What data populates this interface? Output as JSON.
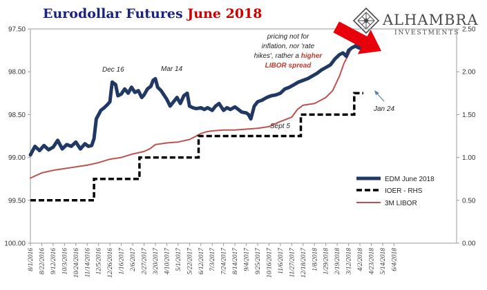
{
  "title": {
    "part1": "Eurodollar Futures ",
    "part2": "June 2018",
    "color1": "#1a237e",
    "color2": "#cc0000"
  },
  "brand": {
    "name": "Alhambra",
    "sub": "INVESTMENTS",
    "logo_icon": "diamond-lattice-icon"
  },
  "annotation": {
    "line1": "pricing not for",
    "line2": "inflation, nor 'rate",
    "line3_prefix": "hikes', rather a ",
    "line3_red": "higher",
    "line4_red": "LIBOR spread",
    "arrow_color": "#e8000b"
  },
  "chart_data": {
    "type": "line",
    "x_labels": [
      "8/1/2016",
      "8/22/2016",
      "9/12/2016",
      "10/3/2016",
      "10/24/2016",
      "11/14/2016",
      "12/5/2016",
      "12/26/2016",
      "1/16/2017",
      "2/6/2017",
      "2/27/2017",
      "3/20/2017",
      "4/10/2017",
      "5/1/2017",
      "5/22/2017",
      "6/12/2017",
      "7/3/2017",
      "7/24/2017",
      "8/14/2017",
      "9/4/2017",
      "9/25/2017",
      "10/16/2017",
      "11/6/2017",
      "11/27/2017",
      "12/18/2017",
      "1/8/2018",
      "1/29/2018",
      "2/19/2018",
      "3/12/2018",
      "4/2/2018",
      "4/23/2018",
      "5/14/2018",
      "6/4/2018"
    ],
    "left_axis": {
      "ticks": [
        "97.50",
        "98.00",
        "98.50",
        "99.00",
        "99.50",
        "100.00"
      ],
      "range": [
        97.5,
        100.0
      ],
      "inverted": true
    },
    "right_axis": {
      "ticks": [
        "2.50",
        "2.00",
        "1.50",
        "1.00",
        "0.50",
        "0.00"
      ],
      "range": [
        0.0,
        2.5
      ]
    },
    "series": [
      {
        "name": "EDM June 2018",
        "axis": "left",
        "color": "#1f3864",
        "style": "thick",
        "points": [
          [
            0,
            98.97
          ],
          [
            0.4,
            98.87
          ],
          [
            0.8,
            98.92
          ],
          [
            1.2,
            98.86
          ],
          [
            1.6,
            98.91
          ],
          [
            2,
            98.88
          ],
          [
            2.4,
            98.8
          ],
          [
            2.8,
            98.9
          ],
          [
            3.2,
            98.85
          ],
          [
            3.6,
            98.87
          ],
          [
            4,
            98.82
          ],
          [
            4.4,
            98.9
          ],
          [
            4.8,
            98.84
          ],
          [
            5.1,
            98.87
          ],
          [
            5.4,
            98.86
          ],
          [
            5.6,
            98.78
          ],
          [
            5.8,
            98.55
          ],
          [
            6,
            98.5
          ],
          [
            6.2,
            98.45
          ],
          [
            6.5,
            98.42
          ],
          [
            6.8,
            98.38
          ],
          [
            7,
            98.35
          ],
          [
            7.2,
            98.12
          ],
          [
            7.5,
            98.15
          ],
          [
            7.7,
            98.28
          ],
          [
            8,
            98.26
          ],
          [
            8.3,
            98.2
          ],
          [
            8.6,
            98.25
          ],
          [
            8.9,
            98.18
          ],
          [
            9.2,
            98.24
          ],
          [
            9.5,
            98.22
          ],
          [
            9.8,
            98.3
          ],
          [
            10,
            98.27
          ],
          [
            10.3,
            98.2
          ],
          [
            10.6,
            98.17
          ],
          [
            10.8,
            98.1
          ],
          [
            11,
            98.08
          ],
          [
            11.2,
            98.18
          ],
          [
            11.5,
            98.22
          ],
          [
            11.8,
            98.28
          ],
          [
            12,
            98.32
          ],
          [
            12.3,
            98.4
          ],
          [
            12.6,
            98.35
          ],
          [
            12.9,
            98.3
          ],
          [
            13.2,
            98.37
          ],
          [
            13.5,
            98.28
          ],
          [
            13.8,
            98.25
          ],
          [
            14,
            98.4
          ],
          [
            14.3,
            98.42
          ],
          [
            14.6,
            98.43
          ],
          [
            15,
            98.42
          ],
          [
            15.3,
            98.44
          ],
          [
            15.6,
            98.42
          ],
          [
            16,
            98.45
          ],
          [
            16.3,
            98.4
          ],
          [
            16.6,
            98.37
          ],
          [
            17,
            98.45
          ],
          [
            17.3,
            98.42
          ],
          [
            17.6,
            98.44
          ],
          [
            18,
            98.41
          ],
          [
            18.3,
            98.44
          ],
          [
            18.6,
            98.47
          ],
          [
            19,
            98.48
          ],
          [
            19.2,
            98.5
          ],
          [
            19.4,
            98.55
          ],
          [
            19.7,
            98.4
          ],
          [
            20,
            98.35
          ],
          [
            20.4,
            98.33
          ],
          [
            20.8,
            98.3
          ],
          [
            21.2,
            98.28
          ],
          [
            21.6,
            98.27
          ],
          [
            22,
            98.25
          ],
          [
            22.4,
            98.2
          ],
          [
            22.8,
            98.18
          ],
          [
            23.2,
            98.15
          ],
          [
            23.6,
            98.12
          ],
          [
            24,
            98.1
          ],
          [
            24.4,
            98.08
          ],
          [
            24.8,
            98.05
          ],
          [
            25.2,
            98.02
          ],
          [
            25.6,
            97.98
          ],
          [
            26,
            97.95
          ],
          [
            26.4,
            97.92
          ],
          [
            26.8,
            97.85
          ],
          [
            27.2,
            97.8
          ],
          [
            27.5,
            97.78
          ],
          [
            27.8,
            97.82
          ],
          [
            28,
            97.75
          ],
          [
            28.3,
            97.72
          ],
          [
            28.6,
            97.7
          ],
          [
            28.9,
            97.72
          ],
          [
            29.2,
            97.73
          ]
        ]
      },
      {
        "name": "IOER - RHS",
        "axis": "right",
        "color": "#000000",
        "style": "dashed",
        "points": [
          [
            0,
            0.5
          ],
          [
            5.6,
            0.5
          ],
          [
            5.6,
            0.75
          ],
          [
            9.6,
            0.75
          ],
          [
            9.6,
            1.0
          ],
          [
            14.8,
            1.0
          ],
          [
            14.8,
            1.25
          ],
          [
            23.8,
            1.25
          ],
          [
            23.8,
            1.5
          ],
          [
            28.5,
            1.5
          ],
          [
            28.5,
            1.75
          ],
          [
            29.3,
            1.75
          ]
        ]
      },
      {
        "name": "3M LIBOR",
        "axis": "right",
        "color": "#c0504d",
        "style": "solid",
        "points": [
          [
            0,
            0.76
          ],
          [
            1,
            0.82
          ],
          [
            2,
            0.85
          ],
          [
            3,
            0.87
          ],
          [
            4,
            0.89
          ],
          [
            5,
            0.91
          ],
          [
            6,
            0.94
          ],
          [
            7,
            0.98
          ],
          [
            8,
            1.0
          ],
          [
            9,
            1.04
          ],
          [
            10,
            1.07
          ],
          [
            10.5,
            1.1
          ],
          [
            11,
            1.15
          ],
          [
            12,
            1.17
          ],
          [
            13,
            1.18
          ],
          [
            14,
            1.21
          ],
          [
            14.6,
            1.25
          ],
          [
            15,
            1.28
          ],
          [
            15.5,
            1.3
          ],
          [
            16,
            1.31
          ],
          [
            17,
            1.32
          ],
          [
            18,
            1.32
          ],
          [
            19,
            1.33
          ],
          [
            20,
            1.34
          ],
          [
            21,
            1.36
          ],
          [
            22,
            1.42
          ],
          [
            23,
            1.47
          ],
          [
            23.5,
            1.56
          ],
          [
            24,
            1.61
          ],
          [
            25,
            1.63
          ],
          [
            26,
            1.7
          ],
          [
            26.6,
            1.78
          ],
          [
            27.2,
            1.95
          ],
          [
            27.6,
            2.1
          ],
          [
            28,
            2.2
          ],
          [
            28.3,
            2.28
          ],
          [
            28.6,
            2.32
          ],
          [
            28.8,
            2.33
          ]
        ]
      }
    ],
    "annotations": [
      {
        "text": "Dec 16"
      },
      {
        "text": "Mar 14"
      },
      {
        "text": "Sept 5"
      },
      {
        "text": "Jan 24"
      }
    ],
    "legend_position": "bottom-right",
    "grid": false
  }
}
